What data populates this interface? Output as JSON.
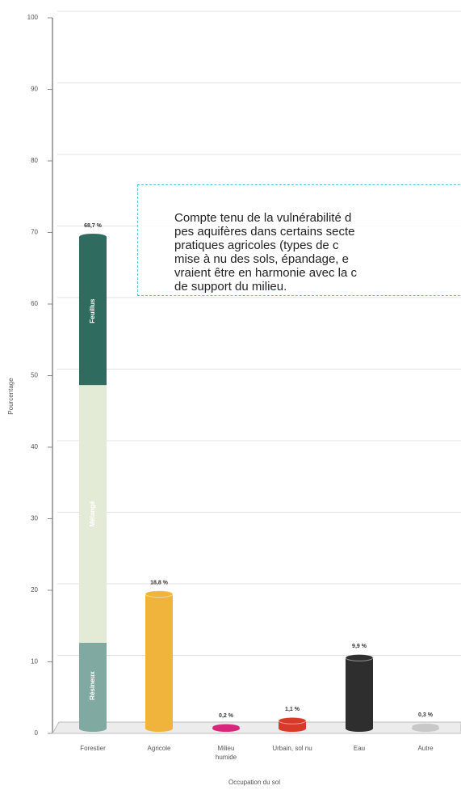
{
  "chart_data": {
    "type": "bar",
    "y_label": "Pourcentage",
    "x_label": "Occupation du sol",
    "categories": [
      "Forestier",
      "Agricole",
      "Milieu\nhumide",
      "Urbain, sol nu",
      "Eau",
      "Autre"
    ],
    "values": [
      68.7,
      18.8,
      0.2,
      1.1,
      9.9,
      0.3
    ],
    "value_labels": [
      "68,7 %",
      "18,8 %",
      "0,2 %",
      "1,1 %",
      "9,9 %",
      "0,3 %"
    ],
    "colors": [
      "#2f6b5e",
      "#f0b43c",
      "#d6287a",
      "#d83a2a",
      "#2e2e2e",
      "#c8c8c8"
    ],
    "series": [
      {
        "name": "Résineux",
        "color": "#80a9a1",
        "values": [
          12,
          null,
          null,
          null,
          null,
          null
        ]
      },
      {
        "name": "Mélangé",
        "color": "#e3ebd7",
        "values": [
          36,
          null,
          null,
          null,
          null,
          null
        ]
      },
      {
        "name": "Feuillus",
        "color": "#2f6b5e",
        "values": [
          20.7,
          null,
          null,
          null,
          null,
          null
        ]
      }
    ],
    "ylim": [
      0,
      100
    ],
    "yticks": [
      0,
      10,
      20,
      30,
      40,
      50,
      60,
      70,
      80,
      90,
      100
    ],
    "grid": true
  },
  "annotation": {
    "lines": [
      "Compte tenu de la vulnérabilité d",
      "pes aquifères dans certains secte",
      "pratiques agricoles (types de c",
      "mise à nu des sols, épandage, e",
      "vraient être en harmonie avec la c",
      "de support du milieu."
    ]
  }
}
